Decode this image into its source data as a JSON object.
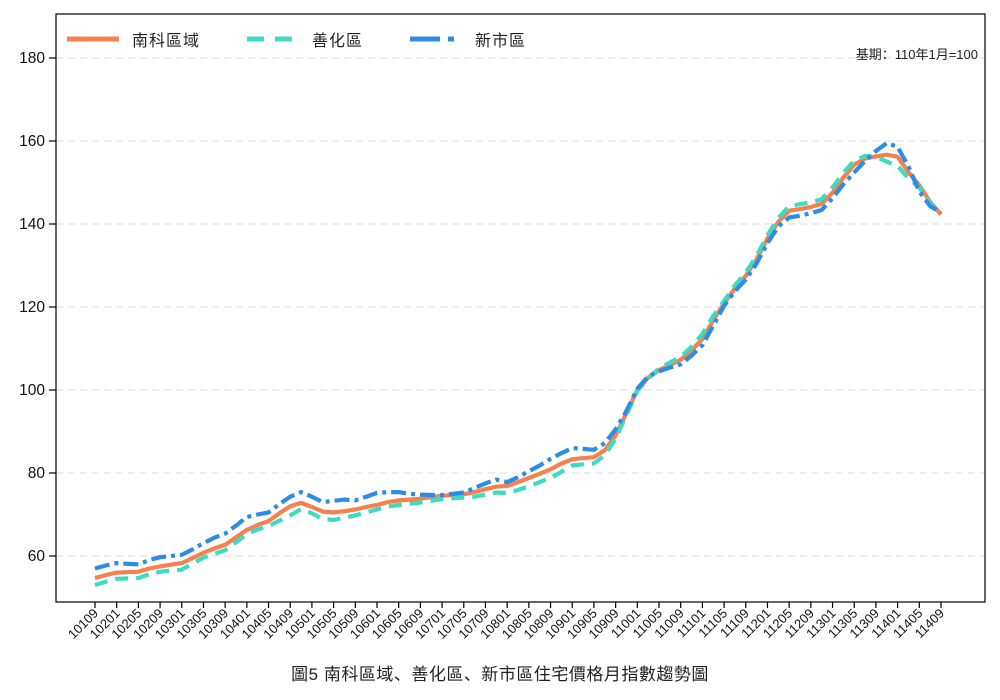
{
  "note": "基期：110年1月=100",
  "title": "圖5 南科區域、善化區、新市區住宅價格月指數趨勢圖",
  "chart_data": {
    "type": "line",
    "title": "圖5 南科區域、善化區、新市區住宅價格月指數趨勢圖",
    "annotation": "基期：110年1月=100",
    "legend_position": "top-left-inside",
    "grid": "horizontal-dashed",
    "ylim": [
      49,
      190.6
    ],
    "y_ticks": [
      60,
      80,
      100,
      120,
      140,
      160,
      180
    ],
    "x_tick_labels": [
      "10109",
      "10201",
      "10205",
      "10209",
      "10301",
      "10305",
      "10309",
      "10401",
      "10405",
      "10409",
      "10501",
      "10505",
      "10509",
      "10601",
      "10605",
      "10609",
      "10701",
      "10705",
      "10709",
      "10801",
      "10805",
      "10809",
      "10901",
      "10905",
      "10909",
      "11001",
      "11005",
      "11009",
      "11101",
      "11105",
      "11109",
      "11201",
      "11205",
      "11209",
      "11301",
      "11305",
      "11309",
      "11401",
      "11405",
      "11409"
    ],
    "x_bimonthly": [
      "10109",
      "10111",
      "10201",
      "10203",
      "10205",
      "10207",
      "10209",
      "10211",
      "10301",
      "10303",
      "10305",
      "10307",
      "10309",
      "10311",
      "10401",
      "10403",
      "10405",
      "10407",
      "10409",
      "10411",
      "10501",
      "10503",
      "10505",
      "10507",
      "10509",
      "10511",
      "10601",
      "10603",
      "10605",
      "10607",
      "10609",
      "10611",
      "10701",
      "10703",
      "10705",
      "10707",
      "10709",
      "10711",
      "10801",
      "10803",
      "10805",
      "10807",
      "10809",
      "10811",
      "10901",
      "10903",
      "10905",
      "10907",
      "10909",
      "10911",
      "11001",
      "11003",
      "11005",
      "11007",
      "11009",
      "11011",
      "11101",
      "11103",
      "11105",
      "11107",
      "11109",
      "11111",
      "11201",
      "11203",
      "11205",
      "11207",
      "11209",
      "11211",
      "11301",
      "11303",
      "11305",
      "11307",
      "11309",
      "11311",
      "11401",
      "11403",
      "11405",
      "11407",
      "11409"
    ],
    "series": [
      {
        "name": "南科區域",
        "color": "#F5814E",
        "dash": "solid",
        "values": [
          54.7,
          55.4,
          56.0,
          56.1,
          56.2,
          57.0,
          57.5,
          57.9,
          58.3,
          59.5,
          60.8,
          61.8,
          62.7,
          64.5,
          66.3,
          67.5,
          68.4,
          70.3,
          72.0,
          72.8,
          71.8,
          70.7,
          70.5,
          70.8,
          71.2,
          71.8,
          72.3,
          73.0,
          73.4,
          73.6,
          73.8,
          74.2,
          74.5,
          74.7,
          74.9,
          75.4,
          76.1,
          76.7,
          76.9,
          77.8,
          78.8,
          79.8,
          80.9,
          82.3,
          83.3,
          83.6,
          83.8,
          85.5,
          89.0,
          94.5,
          100.0,
          103.0,
          104.8,
          106.0,
          107.3,
          109.5,
          112.3,
          116.8,
          120.9,
          124.5,
          127.5,
          131.5,
          136.5,
          140.5,
          143.2,
          143.6,
          144.1,
          144.9,
          147.5,
          151.2,
          154.3,
          155.8,
          156.3,
          156.7,
          156.2,
          152.5,
          149.3,
          145.3,
          142.3
        ]
      },
      {
        "name": "善化區",
        "color": "#3DDBC1",
        "dash": "dashed",
        "values": [
          53.0,
          53.8,
          54.5,
          54.6,
          54.7,
          55.6,
          56.2,
          56.5,
          56.7,
          58.2,
          59.6,
          60.5,
          61.4,
          63.3,
          65.3,
          66.4,
          67.2,
          68.5,
          69.8,
          71.3,
          70.3,
          68.9,
          68.7,
          69.2,
          69.8,
          70.5,
          71.2,
          71.9,
          72.3,
          72.6,
          72.9,
          73.3,
          73.7,
          73.9,
          74.1,
          74.3,
          74.8,
          75.3,
          75.2,
          75.9,
          76.8,
          77.8,
          78.8,
          80.3,
          81.8,
          82.1,
          82.3,
          84.3,
          88.3,
          94.0,
          99.8,
          102.8,
          105.2,
          106.6,
          108.0,
          110.4,
          113.5,
          117.8,
          121.5,
          125.2,
          128.3,
          132.3,
          137.3,
          141.5,
          144.3,
          144.8,
          145.2,
          146.0,
          148.8,
          152.3,
          155.3,
          156.4,
          156.2,
          155.0,
          154.0,
          151.0,
          148.8,
          145.0,
          142.5
        ]
      },
      {
        "name": "新市區",
        "color": "#2C8CE6",
        "dash": "dashdot",
        "values": [
          57.0,
          57.7,
          58.3,
          58.1,
          58.0,
          59.0,
          59.7,
          60.0,
          60.3,
          61.6,
          63.1,
          64.4,
          65.4,
          67.3,
          69.4,
          70.0,
          70.5,
          72.5,
          74.3,
          75.4,
          74.3,
          73.0,
          73.3,
          73.6,
          73.4,
          74.3,
          75.2,
          75.4,
          75.4,
          75.0,
          74.8,
          74.7,
          74.7,
          75.0,
          75.3,
          76.4,
          77.5,
          78.4,
          77.8,
          79.0,
          80.4,
          81.8,
          83.4,
          84.8,
          86.0,
          85.8,
          85.6,
          87.2,
          90.5,
          95.0,
          100.3,
          103.3,
          104.5,
          105.4,
          106.2,
          108.3,
          110.8,
          115.5,
          120.3,
          123.8,
          126.6,
          130.5,
          135.4,
          139.4,
          141.6,
          142.0,
          142.6,
          143.4,
          146.2,
          149.6,
          152.4,
          155.2,
          157.6,
          159.5,
          158.6,
          153.8,
          147.8,
          144.3,
          142.8
        ]
      }
    ]
  }
}
